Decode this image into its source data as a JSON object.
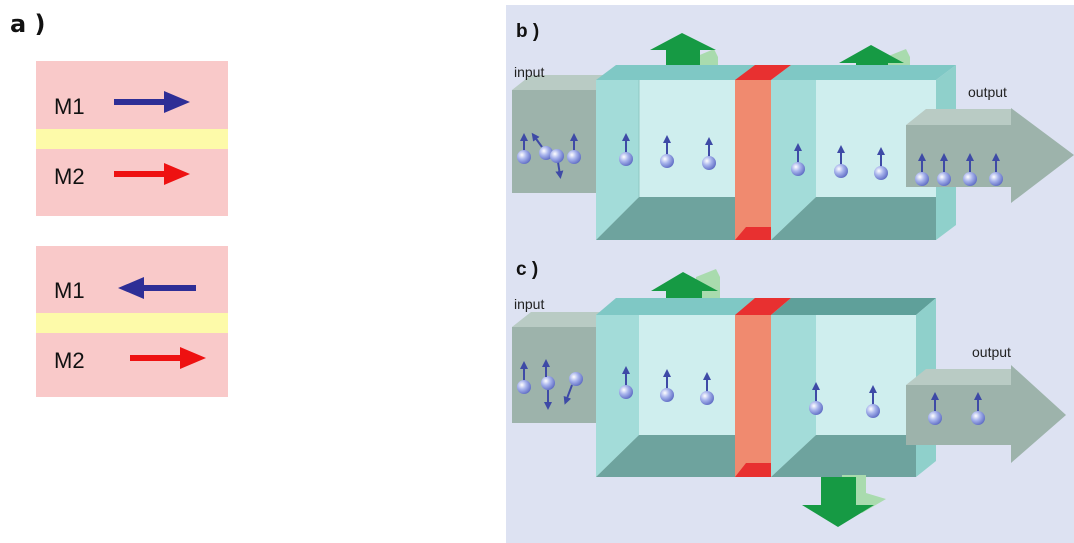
{
  "panel_a": {
    "label": "a )",
    "stack_parallel": {
      "top_layer": "M1",
      "bottom_layer": "M2"
    },
    "stack_antiparallel": {
      "top_layer": "M1",
      "bottom_layer": "M2"
    }
  },
  "panel_b": {
    "label": "b )",
    "input_label": "input",
    "output_label": "output"
  },
  "panel_c": {
    "label": "c )",
    "input_label": "input",
    "output_label": "output"
  },
  "colors": {
    "layer_fill": "#f9c9c9",
    "spacer_fill": "#fdfaa9",
    "m1_arrow": "#2e2e96",
    "m2_arrow": "#ee1111",
    "diagram_background": "#dde2f2",
    "flow_arrow_green": "#169a44",
    "barrier_red": "#e83030"
  }
}
